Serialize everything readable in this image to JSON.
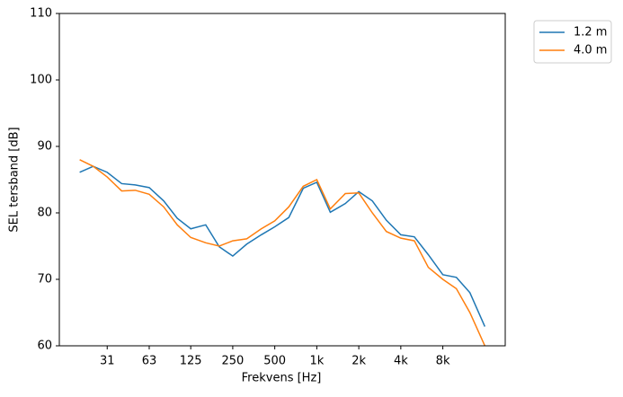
{
  "chart_data": {
    "type": "line",
    "x_label": "Frekvens [Hz]",
    "y_label": "SEL tersband [dB]",
    "x": [
      20,
      25,
      31.5,
      40,
      50,
      63,
      80,
      100,
      125,
      160,
      200,
      250,
      315,
      400,
      500,
      630,
      800,
      1000,
      1250,
      1600,
      2000,
      2500,
      3150,
      4000,
      5000,
      6300,
      8000,
      10000,
      12500,
      16000
    ],
    "series": [
      {
        "name": "1.2 m",
        "color": "#1f77b4",
        "values": [
          86.1,
          87.0,
          86.1,
          84.4,
          84.2,
          83.8,
          81.8,
          79.2,
          77.6,
          78.2,
          74.9,
          73.5,
          75.3,
          76.7,
          77.9,
          79.3,
          83.7,
          84.6,
          80.1,
          81.4,
          83.2,
          81.8,
          78.9,
          76.7,
          76.4,
          73.7,
          70.7,
          70.3,
          68.0,
          62.9
        ]
      },
      {
        "name": "4.0 m",
        "color": "#ff7f0e",
        "values": [
          88.0,
          87.0,
          85.4,
          83.3,
          83.4,
          82.8,
          80.9,
          78.2,
          76.3,
          75.5,
          75.0,
          75.8,
          76.1,
          77.6,
          78.8,
          80.9,
          84.0,
          85.0,
          80.6,
          82.9,
          83.0,
          80.0,
          77.2,
          76.2,
          75.8,
          71.8,
          70.0,
          68.6,
          65.0,
          60.0
        ]
      }
    ],
    "xscale": "log",
    "xlim": [
      14.3,
      22400
    ],
    "xticks": [
      {
        "value": 31.5,
        "label": "31"
      },
      63,
      125,
      250,
      500,
      {
        "value": 1000,
        "label": "1k"
      },
      {
        "value": 2000,
        "label": "2k"
      },
      {
        "value": 4000,
        "label": "4k"
      },
      {
        "value": 8000,
        "label": "8k"
      }
    ],
    "ylim": [
      60,
      110
    ],
    "yticks": [
      60,
      70,
      80,
      90,
      100,
      110
    ],
    "grid": false,
    "legend": "outside"
  }
}
